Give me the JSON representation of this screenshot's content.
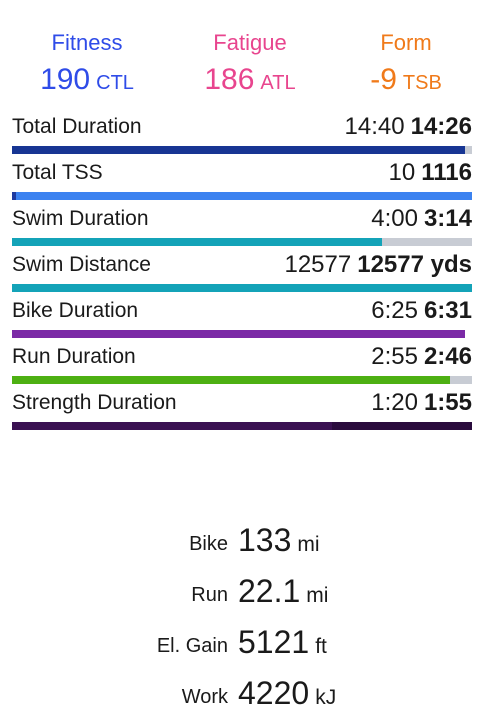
{
  "summary": {
    "fitness": {
      "label": "Fitness",
      "value": "190",
      "unit": "CTL",
      "color": "#2f4ce8"
    },
    "fatigue": {
      "label": "Fatigue",
      "value": "186",
      "unit": "ATL",
      "color": "#e8458e"
    },
    "form": {
      "label": "Form",
      "value": "-9",
      "unit": "TSB",
      "color": "#f07a1a"
    }
  },
  "rows": [
    {
      "label": "Total Duration",
      "current": "14:40",
      "planned": "14:26",
      "fill_fraction": 0.985,
      "color": "#173593",
      "empty_track": false
    },
    {
      "label": "Total TSS",
      "current": "10",
      "planned": "1116",
      "fill_fraction": 0.009,
      "color": "#1e3aa0",
      "track_color": "#3c82f0",
      "empty_track": false
    },
    {
      "label": "Swim Duration",
      "current": "4:00",
      "planned": "3:14",
      "fill_fraction": 0.805,
      "color": "#14a3b8",
      "empty_track": false
    },
    {
      "label": "Swim Distance",
      "current": "12577",
      "planned": "12577 yds",
      "fill_fraction": 1.0,
      "color": "#14a3b8",
      "empty_track": false
    },
    {
      "label": "Bike Duration",
      "current": "6:25",
      "planned": "6:31",
      "fill_fraction": 0.985,
      "color": "#7b2aa6",
      "empty_track": true
    },
    {
      "label": "Run Duration",
      "current": "2:55",
      "planned": "2:46",
      "fill_fraction": 0.953,
      "color": "#4db012",
      "empty_track": false
    },
    {
      "label": "Strength Duration",
      "current": "1:20",
      "planned": "1:55",
      "fill_fraction": 0.696,
      "color": "#3a1152",
      "track_color": "#2a0b3d",
      "empty_track": false
    }
  ],
  "totals": [
    {
      "label": "Bike",
      "value": "133",
      "unit": "mi"
    },
    {
      "label": "Run",
      "value": "22.1",
      "unit": "mi"
    },
    {
      "label": "El. Gain",
      "value": "5121",
      "unit": "ft"
    },
    {
      "label": "Work",
      "value": "4220",
      "unit": "kJ"
    }
  ]
}
